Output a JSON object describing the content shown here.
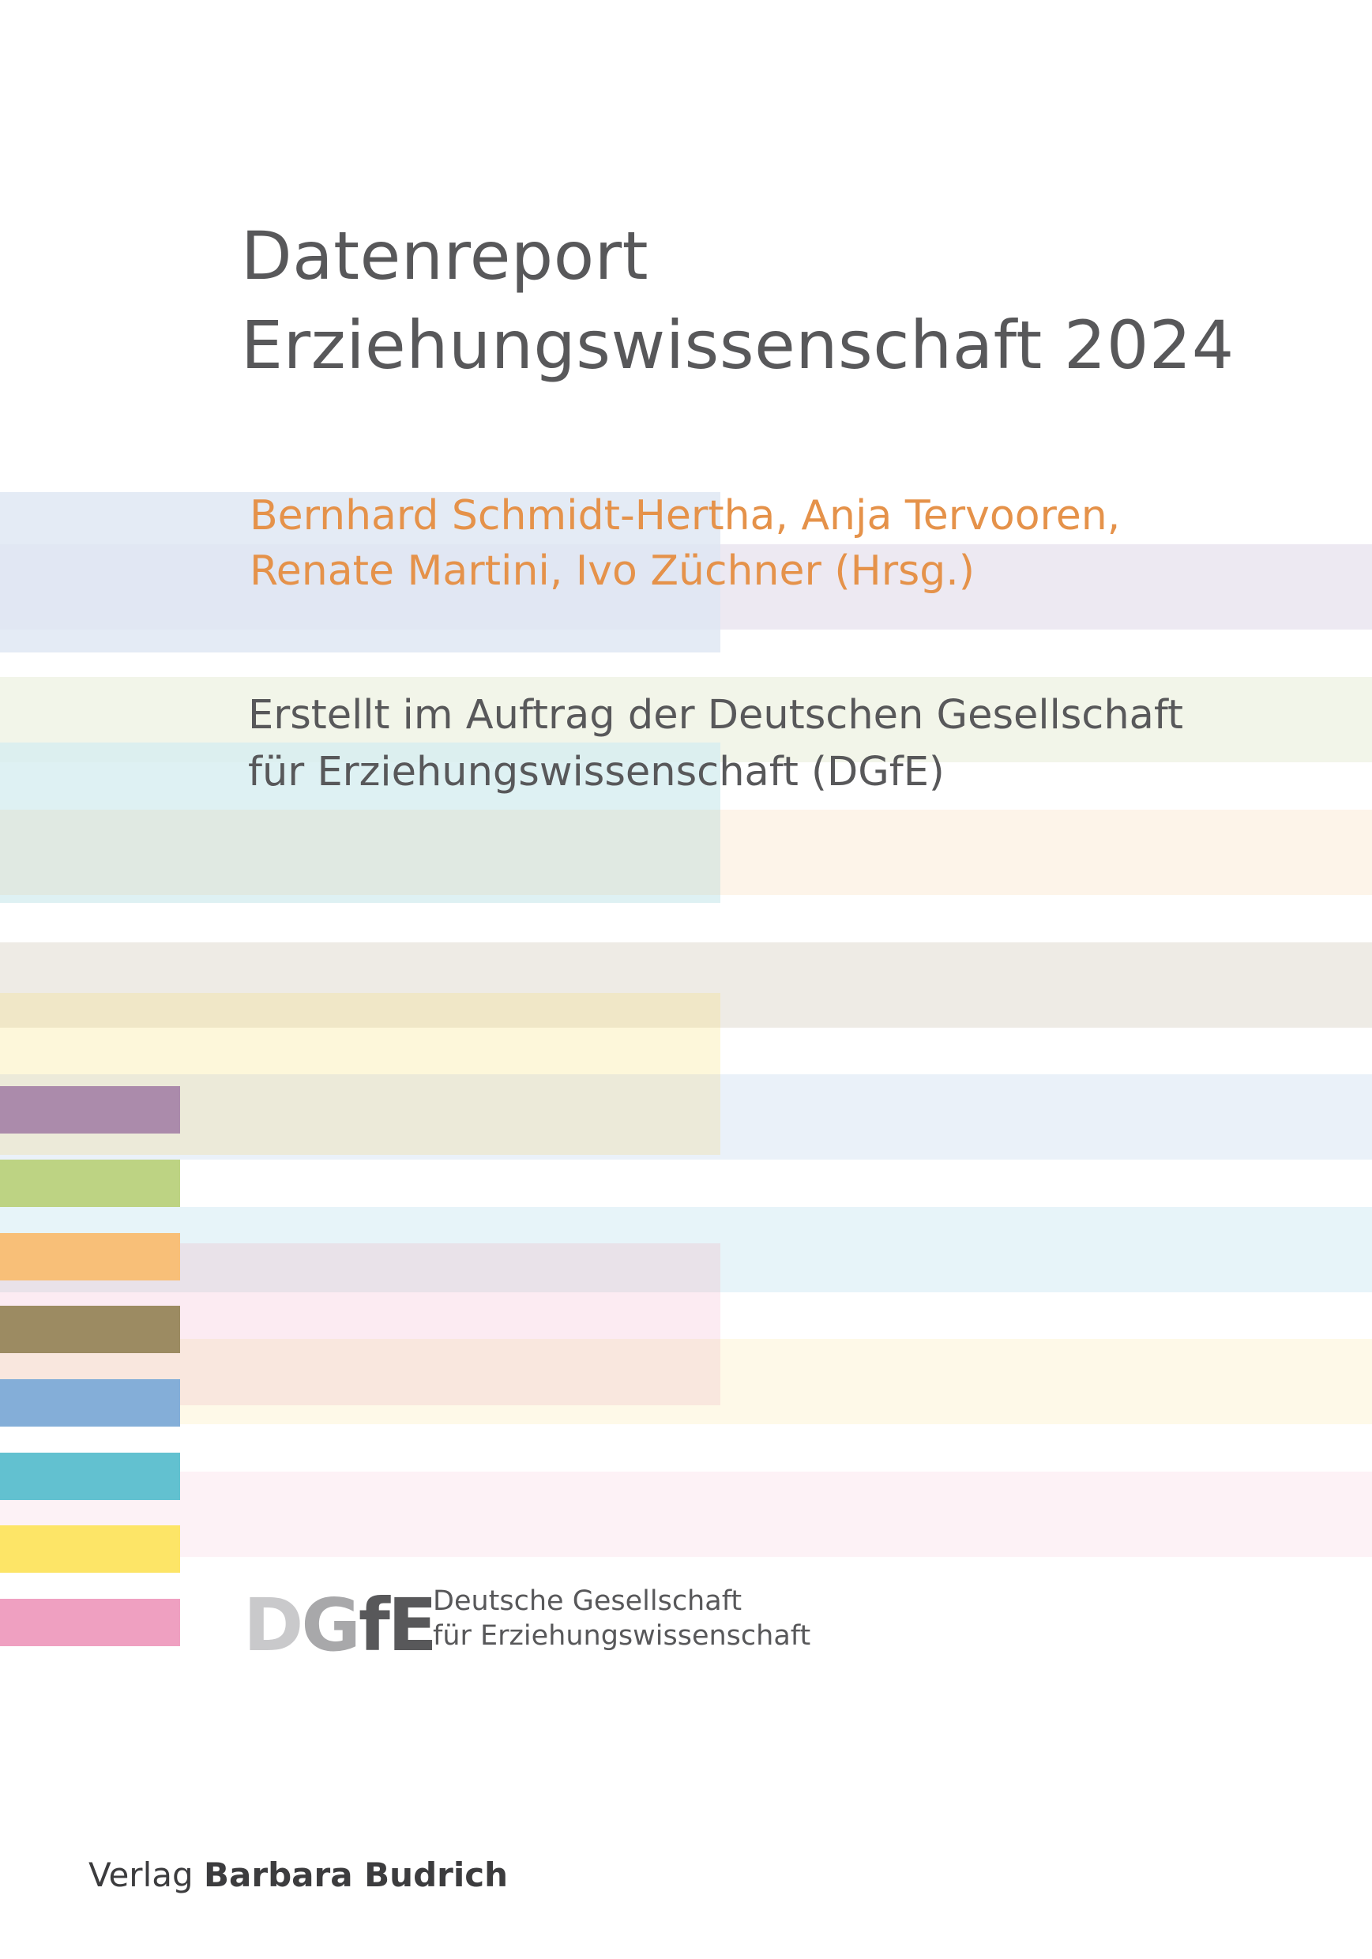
{
  "title": {
    "line1": "Datenreport",
    "line2": "Erziehungswissenschaft 2024"
  },
  "editors": {
    "line1": "Bernhard Schmidt-Hertha, Anja Tervooren,",
    "line2": "Renate Martini, Ivo Züchner (Hrsg.)"
  },
  "commission": {
    "line1": "Erstellt im Auftrag der Deutschen Gesellschaft",
    "line2": "für Erziehungswissenschaft (DGfE)"
  },
  "dgfe": {
    "logo_part1": "D",
    "logo_part2": "G",
    "logo_part3": "fE",
    "name_line1": "Deutsche Gesellschaft",
    "name_line2": "für Erziehungswissenschaft"
  },
  "publisher": {
    "prefix": "Verlag",
    "name": "Barbara Budrich"
  },
  "colors": {
    "title_gray": "#58585a",
    "editor_orange": "#e5924a",
    "swatch_purple": "#ab8bab",
    "swatch_green": "#bdd383",
    "swatch_orange": "#f8bf78",
    "swatch_brown": "#9c8b62",
    "swatch_blue": "#84aed8",
    "swatch_teal": "#62c1d0",
    "swatch_yellow": "#fde567",
    "swatch_pink": "#efa0c1"
  }
}
